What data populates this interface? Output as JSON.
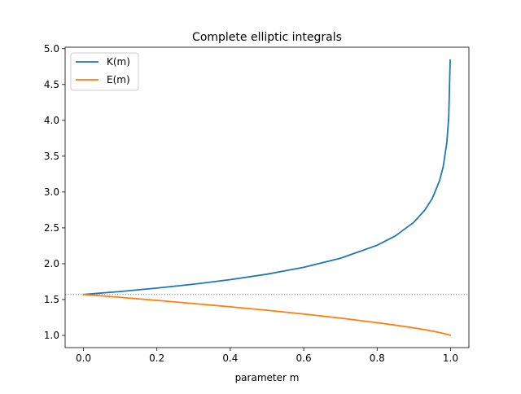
{
  "chart_data": {
    "type": "line",
    "title": "Complete elliptic integrals",
    "xlabel": "parameter m",
    "ylabel": "",
    "xlim": [
      -0.05,
      1.05
    ],
    "ylim": [
      0.83,
      5.02
    ],
    "x_ticks": [
      0.0,
      0.2,
      0.4,
      0.6,
      0.8,
      1.0
    ],
    "x_tick_labels": [
      "0.0",
      "0.2",
      "0.4",
      "0.6",
      "0.8",
      "1.0"
    ],
    "y_ticks": [
      1.0,
      1.5,
      2.0,
      2.5,
      3.0,
      3.5,
      4.0,
      4.5,
      5.0
    ],
    "y_tick_labels": [
      "1.0",
      "1.5",
      "2.0",
      "2.5",
      "3.0",
      "3.5",
      "4.0",
      "4.5",
      "5.0"
    ],
    "grid": false,
    "legend_position": "top-left",
    "reference_line": {
      "y": 1.5708,
      "style": "dotted",
      "color": "#808080"
    },
    "series": [
      {
        "name": "K(m)",
        "color": "#1f77b4",
        "x": [
          0.0,
          0.1,
          0.2,
          0.3,
          0.4,
          0.5,
          0.6,
          0.7,
          0.8,
          0.85,
          0.9,
          0.93,
          0.95,
          0.97,
          0.98,
          0.99,
          0.995,
          0.999
        ],
        "values": [
          1.571,
          1.612,
          1.66,
          1.714,
          1.778,
          1.854,
          1.95,
          2.076,
          2.257,
          2.389,
          2.578,
          2.749,
          2.908,
          3.157,
          3.354,
          3.696,
          4.04,
          4.841
        ]
      },
      {
        "name": "E(m)",
        "color": "#ff7f0e",
        "x": [
          0.0,
          0.1,
          0.2,
          0.3,
          0.4,
          0.5,
          0.6,
          0.7,
          0.8,
          0.85,
          0.9,
          0.93,
          0.95,
          0.97,
          0.98,
          0.99,
          0.995,
          0.999
        ],
        "values": [
          1.571,
          1.531,
          1.489,
          1.445,
          1.399,
          1.351,
          1.298,
          1.242,
          1.178,
          1.143,
          1.105,
          1.08,
          1.06,
          1.04,
          1.029,
          1.016,
          1.009,
          1.002
        ]
      }
    ]
  }
}
